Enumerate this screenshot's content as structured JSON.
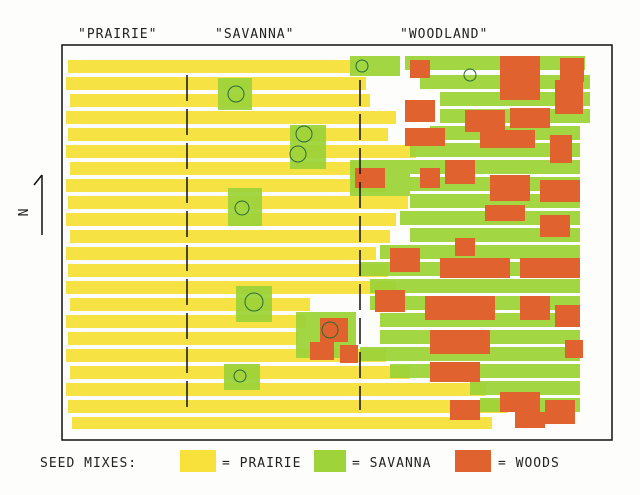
{
  "labels": {
    "prairie": "\"PRAIRIE\"",
    "savanna": "\"SAVANNA\"",
    "woodland": "\"WOODLAND\""
  },
  "north": "N",
  "legend": {
    "title": "SEED MIXES:",
    "items": [
      "= PRAIRIE",
      "= SAVANNA",
      "= WOODS"
    ]
  }
}
